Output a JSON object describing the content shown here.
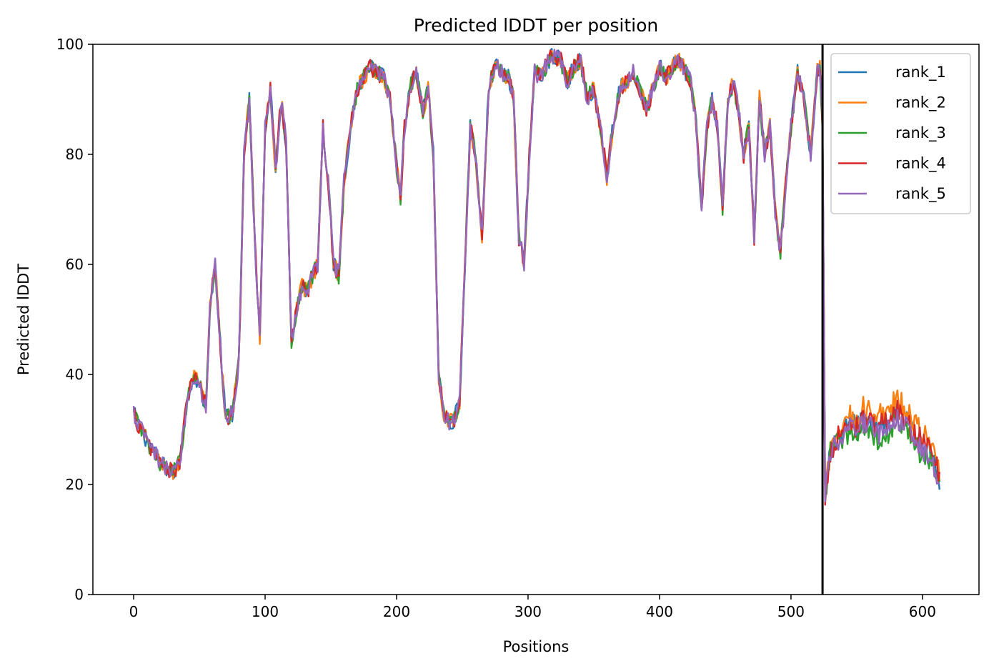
{
  "chart_data": {
    "type": "line",
    "title": "Predicted lDDT per position",
    "xlabel": "Positions",
    "ylabel": "Predicted lDDT",
    "xlim": [
      -31,
      643
    ],
    "ylim": [
      0,
      100
    ],
    "xticks": [
      0,
      100,
      200,
      300,
      400,
      500,
      600
    ],
    "yticks": [
      0,
      20,
      40,
      60,
      80,
      100
    ],
    "grid": false,
    "legend": "upper-right",
    "vline_x": 524,
    "series": [
      {
        "name": "rank_1",
        "color": "#1f77b4"
      },
      {
        "name": "rank_2",
        "color": "#ff7f0e"
      },
      {
        "name": "rank_3",
        "color": "#2ca02c"
      },
      {
        "name": "rank_4",
        "color": "#d62728"
      },
      {
        "name": "rank_5",
        "color": "#9467bd"
      }
    ],
    "profile_x": [
      0,
      3,
      6,
      10,
      15,
      20,
      25,
      30,
      35,
      40,
      45,
      50,
      55,
      58,
      62,
      66,
      70,
      75,
      80,
      84,
      88,
      92,
      96,
      100,
      104,
      108,
      112,
      116,
      120,
      124,
      128,
      132,
      136,
      140,
      144,
      148,
      152,
      156,
      160,
      165,
      170,
      175,
      180,
      185,
      190,
      195,
      200,
      203,
      206,
      210,
      215,
      220,
      224,
      228,
      232,
      236,
      240,
      244,
      248,
      252,
      256,
      260,
      265,
      270,
      275,
      280,
      285,
      289,
      293,
      297,
      301,
      305,
      310,
      315,
      320,
      325,
      330,
      335,
      340,
      345,
      350,
      355,
      360,
      365,
      370,
      375,
      380,
      385,
      390,
      395,
      400,
      405,
      410,
      415,
      420,
      424,
      428,
      432,
      436,
      440,
      444,
      448,
      452,
      456,
      460,
      464,
      468,
      472,
      476,
      480,
      484,
      488,
      492,
      496,
      500,
      505,
      510,
      515,
      520,
      522,
      524,
      526,
      530,
      535,
      540,
      545,
      550,
      555,
      560,
      565,
      570,
      575,
      580,
      585,
      590,
      595,
      600,
      605,
      610,
      613
    ],
    "profile_y": [
      33,
      31,
      30,
      28,
      26,
      24,
      23,
      22,
      24,
      34,
      40,
      38,
      34,
      52,
      60,
      45,
      32,
      33,
      42,
      80,
      90,
      65,
      47,
      85,
      92,
      77,
      90,
      82,
      46,
      52,
      56,
      55,
      58,
      60,
      85,
      75,
      60,
      58,
      75,
      85,
      92,
      94,
      96,
      95,
      94,
      90,
      78,
      72,
      85,
      92,
      95,
      88,
      92,
      80,
      40,
      33,
      31,
      32,
      35,
      60,
      85,
      80,
      65,
      92,
      96,
      95,
      94,
      90,
      65,
      60,
      80,
      95,
      94,
      97,
      98,
      97,
      93,
      96,
      97,
      90,
      92,
      85,
      76,
      86,
      92,
      93,
      95,
      92,
      88,
      92,
      96,
      94,
      96,
      97,
      95,
      93,
      85,
      70,
      85,
      90,
      85,
      70,
      90,
      93,
      88,
      80,
      85,
      65,
      90,
      80,
      85,
      70,
      62,
      75,
      85,
      95,
      90,
      80,
      95,
      96,
      85,
      18,
      26,
      28,
      29,
      31,
      30,
      32,
      31,
      30,
      30,
      31,
      33,
      32,
      30,
      28,
      27,
      26,
      24,
      20
    ]
  }
}
